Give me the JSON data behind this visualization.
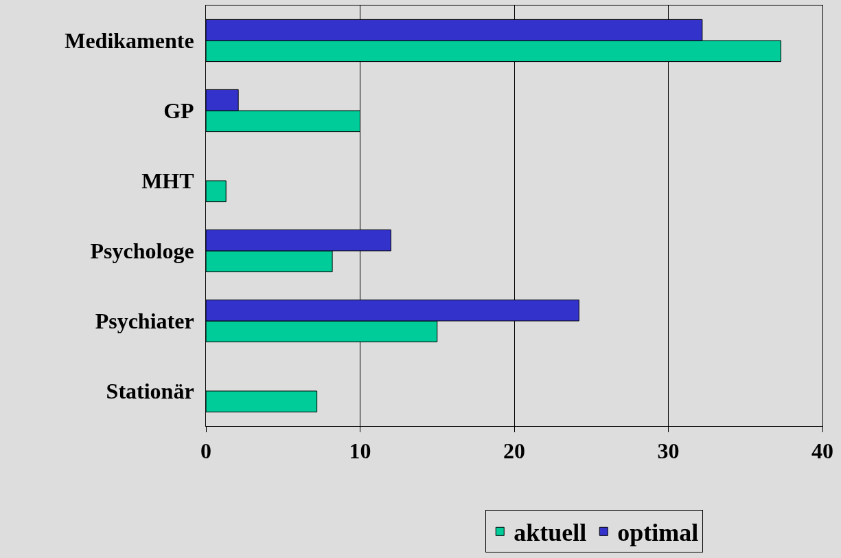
{
  "chart_data": {
    "type": "bar",
    "orientation": "horizontal",
    "categories": [
      "Medikamente",
      "GP",
      "MHT",
      "Psychologe",
      "Psychiater",
      "Stationär"
    ],
    "series": [
      {
        "name": "aktuell",
        "color": "#00cc99",
        "values": [
          37.3,
          10,
          1.3,
          8.2,
          15,
          7.2
        ]
      },
      {
        "name": "optimal",
        "color": "#3333cc",
        "values": [
          32.2,
          2.1,
          null,
          12,
          24.2,
          null
        ]
      }
    ],
    "xlim": [
      0,
      40
    ],
    "xticks": [
      0,
      10,
      20,
      30,
      40
    ],
    "grid": "x",
    "legend": "bottom"
  }
}
